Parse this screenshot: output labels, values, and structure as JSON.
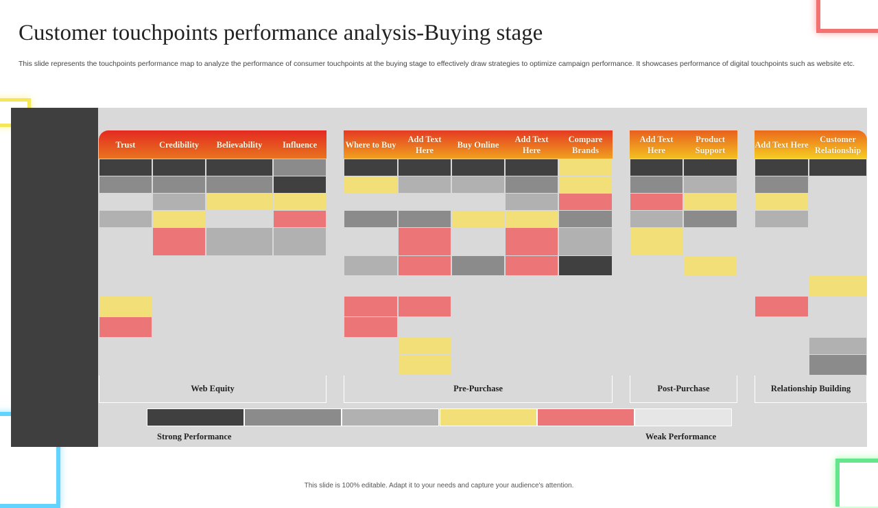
{
  "title": "Customer touchpoints performance analysis-Buying stage",
  "description": "This slide represents the touchpoints performance map to analyze the performance of consumer touchpoints at the buying stage to effectively draw strategies to optimize campaign performance. It showcases performance of digital touchpoints such as website etc.",
  "footer": "This slide is 100% editable. Adapt it to your needs and capture your audience's attention.",
  "levels": {
    "D": "#404040",
    "G": "#8b8b8b",
    "L": "#b1b1b1",
    "Y": "#f3df78",
    "R": "#eb7577",
    "E": "#d9d9d9"
  },
  "groups": [
    {
      "label": "Web Equity",
      "columns": [
        "Trust",
        "Credibility",
        "Believability",
        "Influence"
      ],
      "rows": [
        [
          "D",
          "D",
          "D",
          "G"
        ],
        [
          "G",
          "G",
          "G",
          "D"
        ],
        [
          "E",
          "L",
          "Y",
          "Y"
        ],
        [
          "L",
          "Y",
          "E",
          "R"
        ],
        [
          "E",
          "R",
          "L",
          "L"
        ],
        [
          "E",
          "E",
          "E",
          "E"
        ],
        [
          "E",
          "E",
          "E",
          "E"
        ],
        [
          "Y",
          "E",
          "E",
          "E"
        ],
        [
          "R",
          "E",
          "E",
          "E"
        ],
        [
          "E",
          "E",
          "E",
          "E"
        ],
        [
          "E",
          "E",
          "E",
          "E"
        ]
      ]
    },
    {
      "label": "Pre-Purchase",
      "columns": [
        "Where to Buy",
        "Add Text Here",
        "Buy Online",
        "Add Text Here",
        "Compare Brands"
      ],
      "rows": [
        [
          "D",
          "D",
          "D",
          "D",
          "Y"
        ],
        [
          "Y",
          "L",
          "L",
          "G",
          "Y"
        ],
        [
          "E",
          "E",
          "E",
          "L",
          "R"
        ],
        [
          "G",
          "G",
          "Y",
          "Y",
          "G"
        ],
        [
          "E",
          "R",
          "E",
          "R",
          "L"
        ],
        [
          "L",
          "R",
          "G",
          "R",
          "D"
        ],
        [
          "E",
          "E",
          "E",
          "E",
          "E"
        ],
        [
          "R",
          "R",
          "E",
          "E",
          "E"
        ],
        [
          "R",
          "E",
          "E",
          "E",
          "E"
        ],
        [
          "E",
          "Y",
          "E",
          "E",
          "E"
        ],
        [
          "E",
          "Y",
          "E",
          "E",
          "E"
        ]
      ]
    },
    {
      "label": "Post-Purchase",
      "columns": [
        "Add Text Here",
        "Product Support"
      ],
      "rows": [
        [
          "D",
          "D"
        ],
        [
          "G",
          "L"
        ],
        [
          "R",
          "Y"
        ],
        [
          "L",
          "G"
        ],
        [
          "Y",
          "E"
        ],
        [
          "E",
          "Y"
        ],
        [
          "E",
          "E"
        ],
        [
          "E",
          "E"
        ],
        [
          "E",
          "E"
        ],
        [
          "E",
          "E"
        ],
        [
          "E",
          "E"
        ]
      ]
    },
    {
      "label": "Relationship Building",
      "columns": [
        "Add Text Here",
        "Customer Relationship"
      ],
      "rows": [
        [
          "D",
          "D"
        ],
        [
          "G",
          "E"
        ],
        [
          "Y",
          "E"
        ],
        [
          "L",
          "E"
        ],
        [
          "E",
          "E"
        ],
        [
          "E",
          "E"
        ],
        [
          "E",
          "Y"
        ],
        [
          "R",
          "E"
        ],
        [
          "E",
          "E"
        ],
        [
          "E",
          "L"
        ],
        [
          "E",
          "G"
        ]
      ]
    }
  ],
  "legend": {
    "scale": [
      "D",
      "G",
      "L",
      "Y",
      "R",
      "W"
    ],
    "scale_colors": {
      "W": "#e6e6e6"
    },
    "strong_label": "Strong Performance",
    "weak_label": "Weak Performance"
  }
}
